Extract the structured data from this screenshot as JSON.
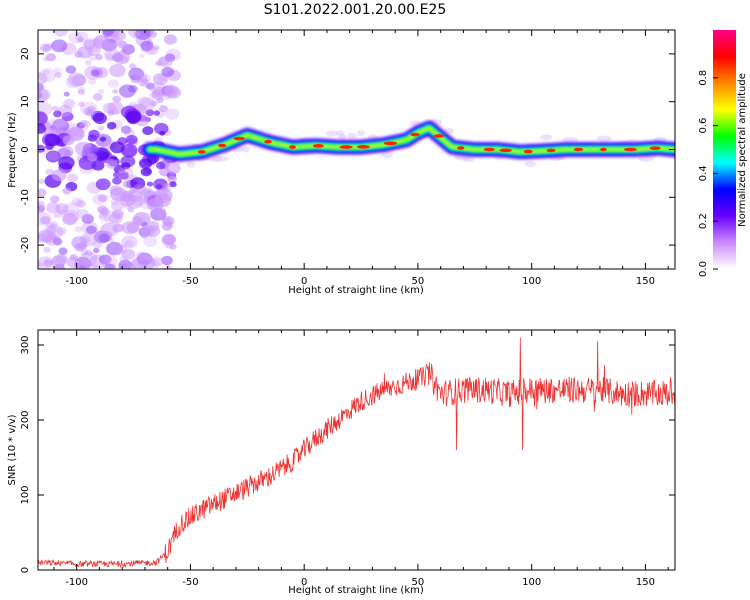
{
  "title": "S101.2022.001.20.00.E25",
  "chart_data": [
    {
      "type": "heatmap",
      "xlabel": "Height of straight line (km)",
      "ylabel": "Frequency (Hz)",
      "xlim": [
        -117,
        163
      ],
      "ylim": [
        -25,
        25
      ],
      "xticks": [
        -100,
        -50,
        0,
        50,
        100,
        150
      ],
      "yticks": [
        -20,
        -10,
        0,
        10,
        20
      ],
      "ridge": {
        "x": [
          -65,
          -55,
          -45,
          -35,
          -25,
          -15,
          -5,
          5,
          15,
          25,
          35,
          45,
          50,
          55,
          60,
          65,
          75,
          85,
          95,
          105,
          115,
          125,
          135,
          145,
          155,
          163
        ],
        "y": [
          0.0,
          -1.0,
          -0.5,
          1.0,
          3.0,
          1.5,
          0.5,
          0.8,
          0.5,
          0.5,
          1.0,
          2.0,
          3.5,
          4.5,
          2.5,
          0.5,
          0.0,
          0.0,
          -0.5,
          -0.3,
          0.0,
          0.0,
          0.0,
          0.0,
          0.3,
          0.0
        ]
      },
      "noise_region_x": [
        -117,
        -65
      ],
      "colorbar": {
        "label": "Normalized spectral amplitude",
        "range": [
          0,
          1
        ],
        "ticks": [
          "0.0",
          "0.2",
          "0.4",
          "0.6",
          "0.8"
        ],
        "tick_values": [
          0.0,
          0.2,
          0.4,
          0.6,
          0.8
        ],
        "colors": [
          "#ffffff",
          "#cc88ff",
          "#6600ff",
          "#0000ff",
          "#00ffff",
          "#00ff00",
          "#ffff00",
          "#ff8800",
          "#ff0000",
          "#ff0088"
        ]
      }
    },
    {
      "type": "line",
      "xlabel": "Height of straight line (km)",
      "ylabel": "SNR (10 * v/v)",
      "xlim": [
        -117,
        163
      ],
      "ylim": [
        0,
        320
      ],
      "xticks": [
        -100,
        -50,
        0,
        50,
        100,
        150
      ],
      "yticks": [
        0,
        100,
        200,
        300
      ],
      "color": "#ee3333",
      "trend": {
        "x": [
          -117,
          -100,
          -80,
          -65,
          -60,
          -55,
          -45,
          -35,
          -25,
          -15,
          -5,
          5,
          15,
          25,
          35,
          45,
          55,
          60,
          70,
          80,
          90,
          100,
          110,
          120,
          130,
          140,
          150,
          163
        ],
        "y": [
          10,
          8,
          8,
          10,
          25,
          60,
          80,
          95,
          110,
          125,
          145,
          175,
          200,
          225,
          240,
          250,
          260,
          235,
          240,
          240,
          235,
          240,
          240,
          240,
          240,
          235,
          235,
          235
        ]
      },
      "spikes": [
        {
          "x": 56,
          "y": 275
        },
        {
          "x": 67,
          "y": 160
        },
        {
          "x": 95,
          "y": 310
        },
        {
          "x": 96,
          "y": 160
        },
        {
          "x": 129,
          "y": 305
        }
      ]
    }
  ]
}
